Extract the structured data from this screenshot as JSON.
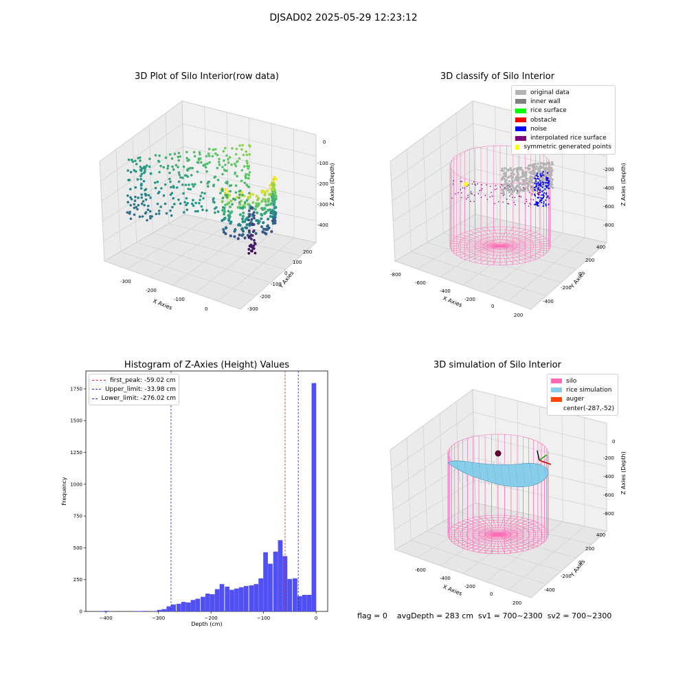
{
  "figure": {
    "suptitle": "DJSAD02 2025-05-29 12:23:12",
    "footer": "flag = 0    avgDepth = 283 cm  sv1 = 700~2300  sv2 = 700~2300"
  },
  "colors": {
    "histogram_bar": "#5050f5",
    "first_peak": "#e31a1c",
    "limits": "#1f1fd6",
    "silo_mesh": "#ff69b4",
    "rice": "#87ceeb",
    "auger": "#ff4500"
  },
  "chart_data": [
    {
      "type": "scatter",
      "title": "3D Plot of Silo Interior(row data)",
      "xlabel": "X Axies",
      "ylabel": "Y Axies",
      "zlabel": "Z Axies (Depth)",
      "x_ticks": [
        "-300",
        "-200",
        "-100",
        "0"
      ],
      "y_ticks": [
        "-300",
        "-200",
        "-100",
        "0",
        "100",
        "200"
      ],
      "z_ticks": [
        "-400",
        "-300",
        "-200",
        "-100",
        "0"
      ],
      "colormap": "viridis"
    },
    {
      "type": "scatter",
      "title": "3D classify of Silo Interior",
      "xlabel": "X Axies",
      "ylabel": "Y Axies",
      "zlabel": "Z Axies (Depth)",
      "x_ticks": [
        "-800",
        "-600",
        "-400",
        "-200",
        "0",
        "200"
      ],
      "y_ticks": [
        "-400",
        "-200",
        "0",
        "200",
        "400"
      ],
      "z_ticks": [
        "-800",
        "-600",
        "-400",
        "-200",
        "0"
      ],
      "legend": [
        {
          "label": "original data",
          "color": "#b3b3b3"
        },
        {
          "label": "inner wall",
          "color": "#808080"
        },
        {
          "label": "rice surface",
          "color": "#00ff00"
        },
        {
          "label": "obstacle",
          "color": "#ff0000"
        },
        {
          "label": "noise",
          "color": "#0000ff"
        },
        {
          "label": "interpolated rice surface",
          "color": "#800080"
        },
        {
          "label": "symmetric generated points",
          "color": "#ffff00"
        }
      ]
    },
    {
      "type": "bar",
      "title": "Histogram of Z-Axies (Height) Values",
      "xlabel": "Depth (cm)",
      "ylabel": "Frequency",
      "xlim": [
        -438,
        22
      ],
      "ylim": [
        0,
        1890
      ],
      "x_ticks": [
        -400,
        -300,
        -200,
        -100,
        0
      ],
      "y_ticks": [
        0,
        250,
        500,
        750,
        1000,
        1250,
        1500,
        1750
      ],
      "bin_width": 9.2,
      "bins": [
        {
          "x": -408,
          "value": 2
        },
        {
          "x": -399,
          "value": 5
        },
        {
          "x": -390,
          "value": 2
        },
        {
          "x": -344,
          "value": 3
        },
        {
          "x": -335,
          "value": 3
        },
        {
          "x": -325,
          "value": 4
        },
        {
          "x": -307,
          "value": 3
        },
        {
          "x": -298,
          "value": 12
        },
        {
          "x": -289,
          "value": 18
        },
        {
          "x": -280,
          "value": 40
        },
        {
          "x": -271,
          "value": 55
        },
        {
          "x": -261,
          "value": 60
        },
        {
          "x": -252,
          "value": 75
        },
        {
          "x": -243,
          "value": 70
        },
        {
          "x": -234,
          "value": 90
        },
        {
          "x": -225,
          "value": 100
        },
        {
          "x": -215,
          "value": 115
        },
        {
          "x": -206,
          "value": 140
        },
        {
          "x": -197,
          "value": 135
        },
        {
          "x": -188,
          "value": 175
        },
        {
          "x": -179,
          "value": 215
        },
        {
          "x": -169,
          "value": 195
        },
        {
          "x": -160,
          "value": 170
        },
        {
          "x": -151,
          "value": 180
        },
        {
          "x": -142,
          "value": 190
        },
        {
          "x": -133,
          "value": 200
        },
        {
          "x": -123,
          "value": 205
        },
        {
          "x": -114,
          "value": 215
        },
        {
          "x": -105,
          "value": 260
        },
        {
          "x": -96,
          "value": 465
        },
        {
          "x": -87,
          "value": 375
        },
        {
          "x": -77,
          "value": 470
        },
        {
          "x": -68,
          "value": 560
        },
        {
          "x": -59,
          "value": 435
        },
        {
          "x": -50,
          "value": 255
        },
        {
          "x": -40,
          "value": 260
        },
        {
          "x": -31,
          "value": 120
        },
        {
          "x": -22,
          "value": 130
        },
        {
          "x": -13,
          "value": 130
        },
        {
          "x": -4,
          "value": 1795
        }
      ],
      "vlines": [
        {
          "label": "first_peak: -59.02 cm",
          "x": -59.02,
          "color": "#e31a1c"
        },
        {
          "label": "Upper_limit: -33.98 cm",
          "x": -33.98,
          "color": "#1f1fd6"
        },
        {
          "label": "Lower_limit: -276.02 cm",
          "x": -276.02,
          "color": "#1f1fd6"
        }
      ],
      "legend_position": "upper left"
    },
    {
      "type": "surface",
      "title": "3D simulation of Silo Interior",
      "xlabel": "X Axies",
      "ylabel": "Y Axies",
      "zlabel": "Z Axies (Depth)",
      "x_ticks": [
        "-600",
        "-400",
        "-200",
        "0",
        "200"
      ],
      "y_ticks": [
        "-400",
        "-200",
        "0",
        "200",
        "400"
      ],
      "z_ticks": [
        "-800",
        "-600",
        "-400",
        "-200",
        "0"
      ],
      "legend": [
        {
          "label": "silo",
          "color": "#ff69b4"
        },
        {
          "label": "rice simulation",
          "color": "#87ceeb"
        },
        {
          "label": "auger",
          "color": "#ff4500"
        },
        {
          "label": "center(-287,-52)",
          "color": ""
        }
      ]
    }
  ]
}
